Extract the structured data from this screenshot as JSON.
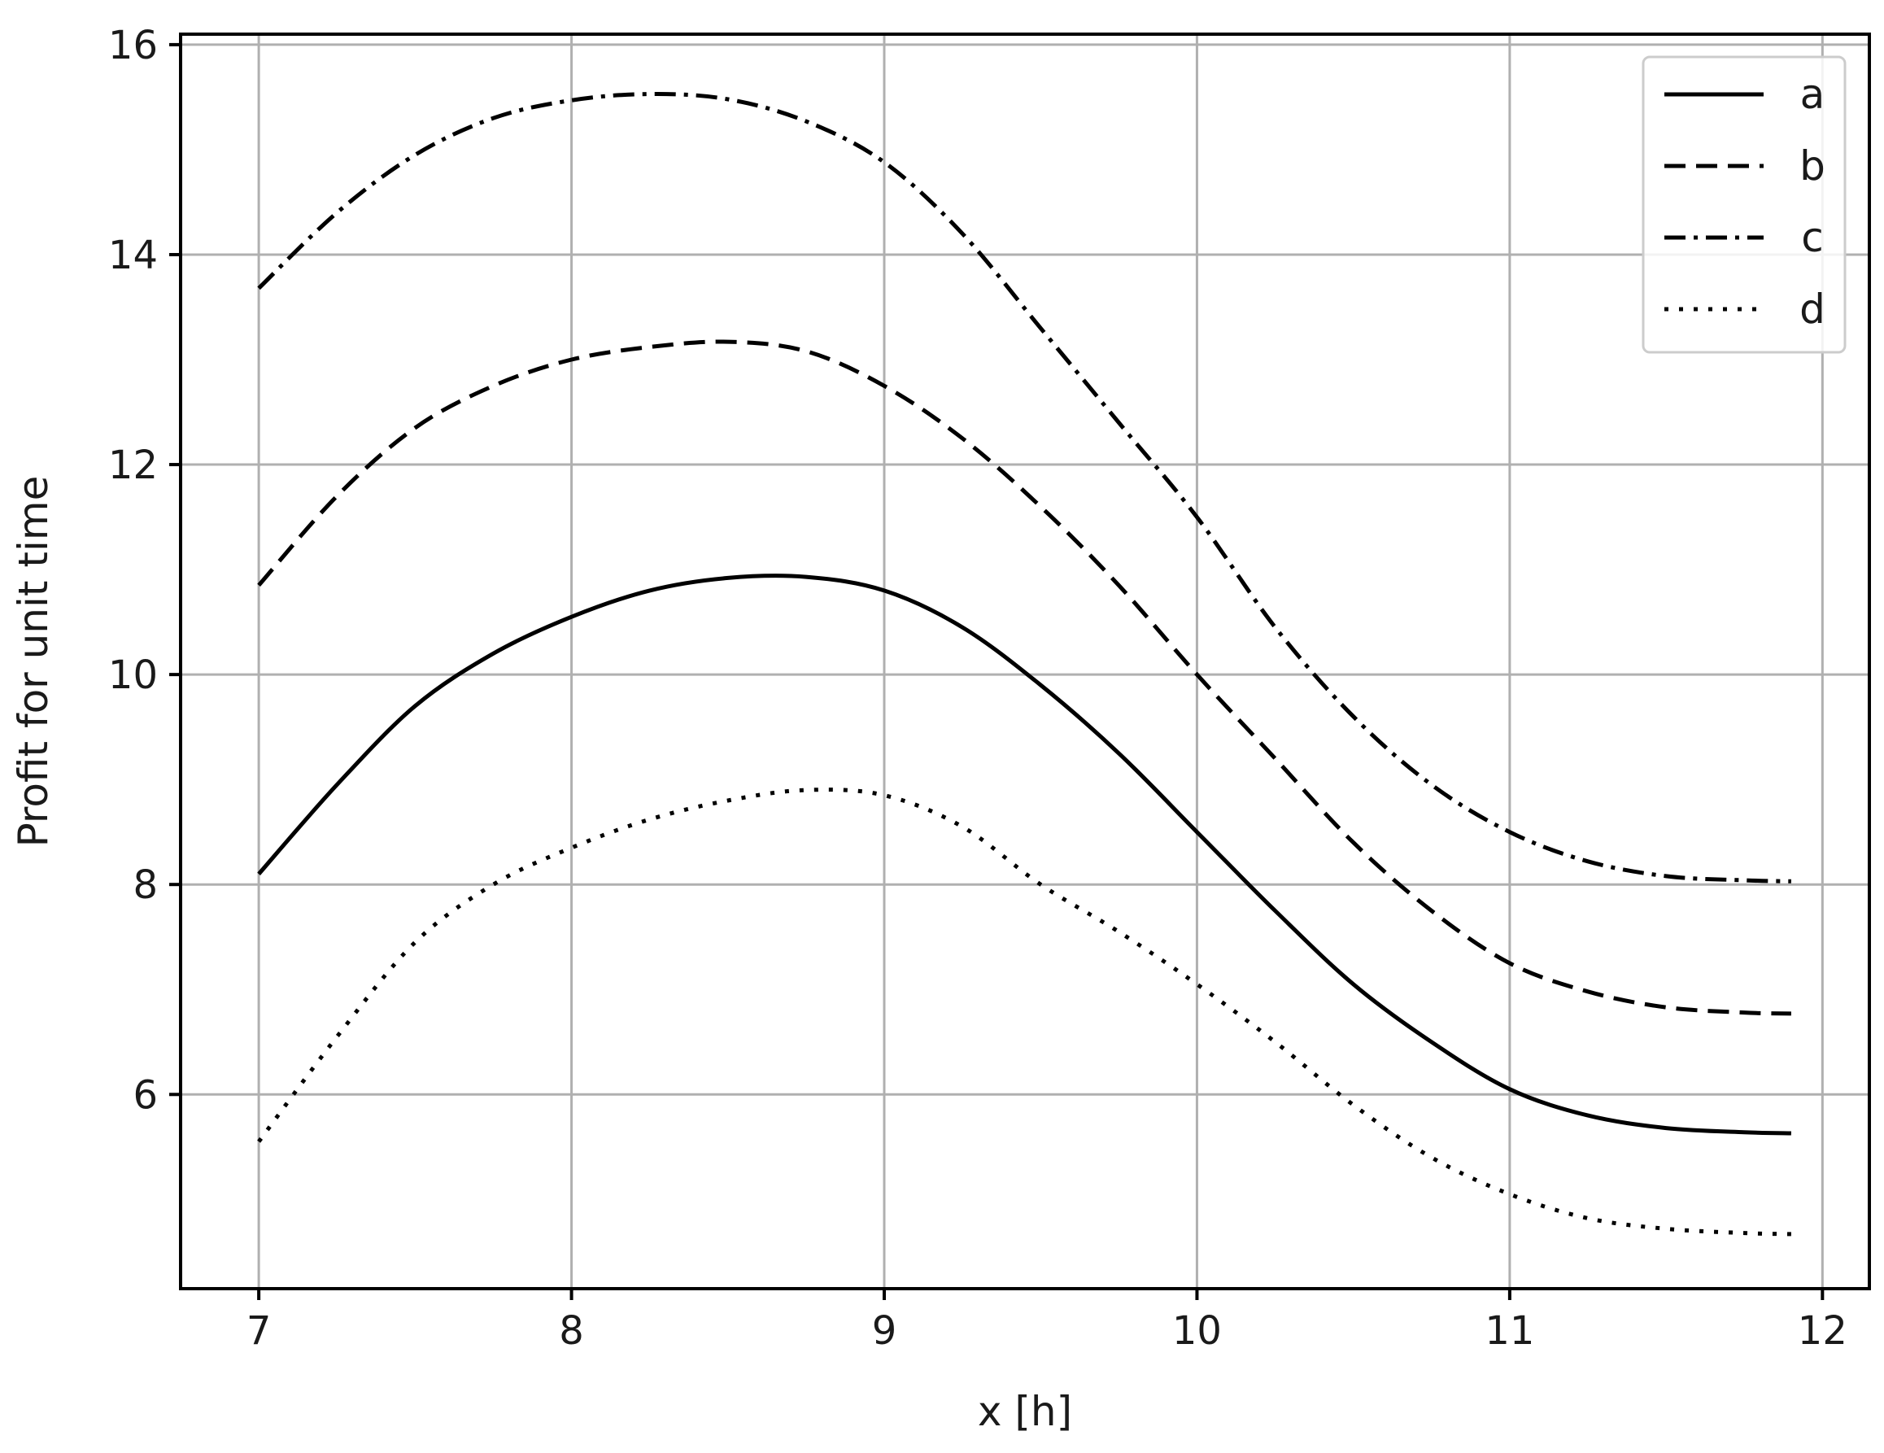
{
  "chart_data": {
    "type": "line",
    "title": "",
    "xlabel": "x [h]",
    "ylabel": "Profit for unit time",
    "xlim": [
      6.75,
      12.15
    ],
    "ylim": [
      4.15,
      16.1
    ],
    "xticks": [
      7,
      8,
      9,
      10,
      11,
      12
    ],
    "yticks": [
      6,
      8,
      10,
      12,
      14,
      16
    ],
    "grid": true,
    "legend_position": "top-right",
    "x": [
      7.0,
      7.25,
      7.5,
      7.75,
      8.0,
      8.25,
      8.5,
      8.75,
      9.0,
      9.25,
      9.5,
      9.75,
      10.0,
      10.25,
      10.5,
      10.75,
      11.0,
      11.25,
      11.5,
      11.75,
      11.9
    ],
    "series": [
      {
        "name": "a",
        "line_style": "solid",
        "color": "#000000",
        "values": [
          8.1,
          8.95,
          9.7,
          10.2,
          10.55,
          10.8,
          10.92,
          10.93,
          10.8,
          10.45,
          9.9,
          9.25,
          8.5,
          7.75,
          7.05,
          6.5,
          6.05,
          5.8,
          5.68,
          5.64,
          5.63
        ]
      },
      {
        "name": "b",
        "line_style": "dashed",
        "color": "#000000",
        "values": [
          10.85,
          11.7,
          12.35,
          12.75,
          13.0,
          13.12,
          13.17,
          13.08,
          12.75,
          12.25,
          11.6,
          10.85,
          10.0,
          9.2,
          8.4,
          7.75,
          7.25,
          6.98,
          6.83,
          6.78,
          6.77
        ]
      },
      {
        "name": "c",
        "line_style": "dashdot",
        "color": "#000000",
        "values": [
          13.68,
          14.4,
          14.95,
          15.3,
          15.47,
          15.53,
          15.48,
          15.27,
          14.88,
          14.2,
          13.3,
          12.4,
          11.5,
          10.45,
          9.6,
          8.95,
          8.5,
          8.22,
          8.08,
          8.04,
          8.03
        ]
      },
      {
        "name": "d",
        "line_style": "dotted",
        "color": "#000000",
        "values": [
          5.55,
          6.55,
          7.45,
          8.0,
          8.35,
          8.62,
          8.8,
          8.9,
          8.85,
          8.55,
          8.0,
          7.55,
          7.05,
          6.5,
          5.9,
          5.4,
          5.05,
          4.82,
          4.72,
          4.68,
          4.67
        ]
      }
    ]
  }
}
